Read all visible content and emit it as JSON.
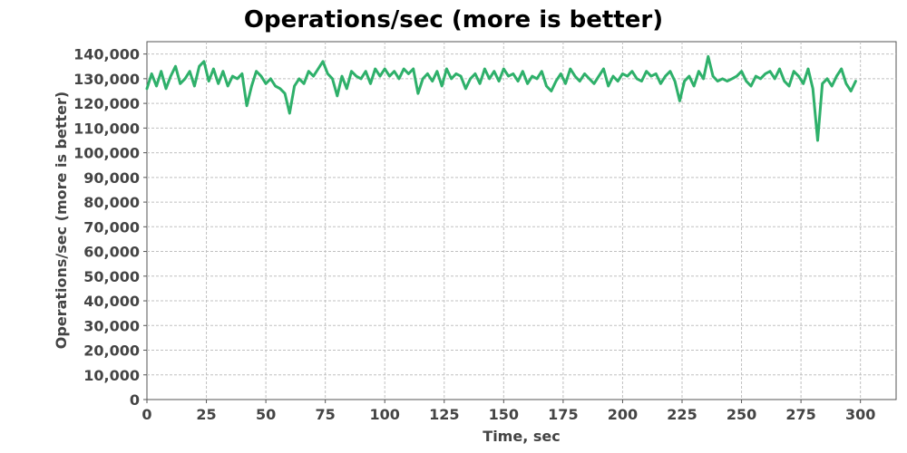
{
  "chart_data": {
    "type": "line",
    "title": "Operations/sec (more is better)",
    "xlabel": "Time, sec",
    "ylabel": "Operations/sec (more is better)",
    "xlim": [
      0,
      315
    ],
    "ylim": [
      0,
      145000
    ],
    "x_ticks": [
      0,
      25,
      50,
      75,
      100,
      125,
      150,
      175,
      200,
      225,
      250,
      275,
      300
    ],
    "y_ticks": [
      0,
      10000,
      20000,
      30000,
      40000,
      50000,
      60000,
      70000,
      80000,
      90000,
      100000,
      110000,
      120000,
      130000,
      140000
    ],
    "x_tick_labels": [
      "0",
      "25",
      "50",
      "75",
      "100",
      "125",
      "150",
      "175",
      "200",
      "225",
      "250",
      "275",
      "300"
    ],
    "y_tick_labels": [
      "0",
      "10,000",
      "20,000",
      "30,000",
      "40,000",
      "50,000",
      "60,000",
      "70,000",
      "80,000",
      "90,000",
      "100,000",
      "110,000",
      "120,000",
      "130,000",
      "140,000"
    ],
    "grid": true,
    "series": [
      {
        "name": "Operations/sec",
        "color": "#2eb06a",
        "x": [
          0,
          2,
          4,
          6,
          8,
          10,
          12,
          14,
          16,
          18,
          20,
          22,
          24,
          26,
          28,
          30,
          32,
          34,
          36,
          38,
          40,
          42,
          44,
          46,
          48,
          50,
          52,
          54,
          56,
          58,
          60,
          62,
          64,
          66,
          68,
          70,
          72,
          74,
          76,
          78,
          80,
          82,
          84,
          86,
          88,
          90,
          92,
          94,
          96,
          98,
          100,
          102,
          104,
          106,
          108,
          110,
          112,
          114,
          116,
          118,
          120,
          122,
          124,
          126,
          128,
          130,
          132,
          134,
          136,
          138,
          140,
          142,
          144,
          146,
          148,
          150,
          152,
          154,
          156,
          158,
          160,
          162,
          164,
          166,
          168,
          170,
          172,
          174,
          176,
          178,
          180,
          182,
          184,
          186,
          188,
          190,
          192,
          194,
          196,
          198,
          200,
          202,
          204,
          206,
          208,
          210,
          212,
          214,
          216,
          218,
          220,
          222,
          224,
          226,
          228,
          230,
          232,
          234,
          236,
          238,
          240,
          242,
          244,
          246,
          248,
          250,
          252,
          254,
          256,
          258,
          260,
          262,
          264,
          266,
          268,
          270,
          272,
          274,
          276,
          278,
          280,
          282,
          284,
          286,
          288,
          290,
          292,
          294,
          296,
          298
        ],
        "values": [
          126000,
          132000,
          127000,
          133000,
          126000,
          131000,
          135000,
          128000,
          130000,
          133000,
          127000,
          135000,
          137000,
          129000,
          134000,
          128000,
          133000,
          127000,
          131000,
          130000,
          132000,
          119000,
          127000,
          133000,
          131000,
          128000,
          130000,
          127000,
          126000,
          124000,
          116000,
          127000,
          130000,
          128000,
          133000,
          131000,
          134000,
          137000,
          132000,
          130000,
          123000,
          131000,
          126000,
          133000,
          131000,
          130000,
          133000,
          128000,
          134000,
          131000,
          134000,
          131000,
          133000,
          130000,
          134000,
          132000,
          134000,
          124000,
          130000,
          132000,
          129000,
          133000,
          127000,
          134000,
          130000,
          132000,
          131000,
          126000,
          130000,
          132000,
          128000,
          134000,
          130000,
          133000,
          129000,
          134000,
          131000,
          132000,
          129000,
          133000,
          128000,
          131000,
          130000,
          133000,
          127000,
          125000,
          129000,
          132000,
          128000,
          134000,
          131000,
          129000,
          132000,
          130000,
          128000,
          131000,
          134000,
          127000,
          131000,
          129000,
          132000,
          131000,
          133000,
          130000,
          129000,
          133000,
          131000,
          132000,
          128000,
          131000,
          133000,
          129000,
          121000,
          129000,
          131000,
          127000,
          133000,
          130000,
          139000,
          131000,
          129000,
          130000,
          129000,
          130000,
          131000,
          133000,
          129000,
          127000,
          131000,
          130000,
          132000,
          133000,
          130000,
          134000,
          129000,
          127000,
          133000,
          131000,
          128000,
          134000,
          126000,
          105000,
          128000,
          130000,
          127000,
          131000,
          134000,
          128000,
          125000,
          129000
        ]
      }
    ]
  }
}
